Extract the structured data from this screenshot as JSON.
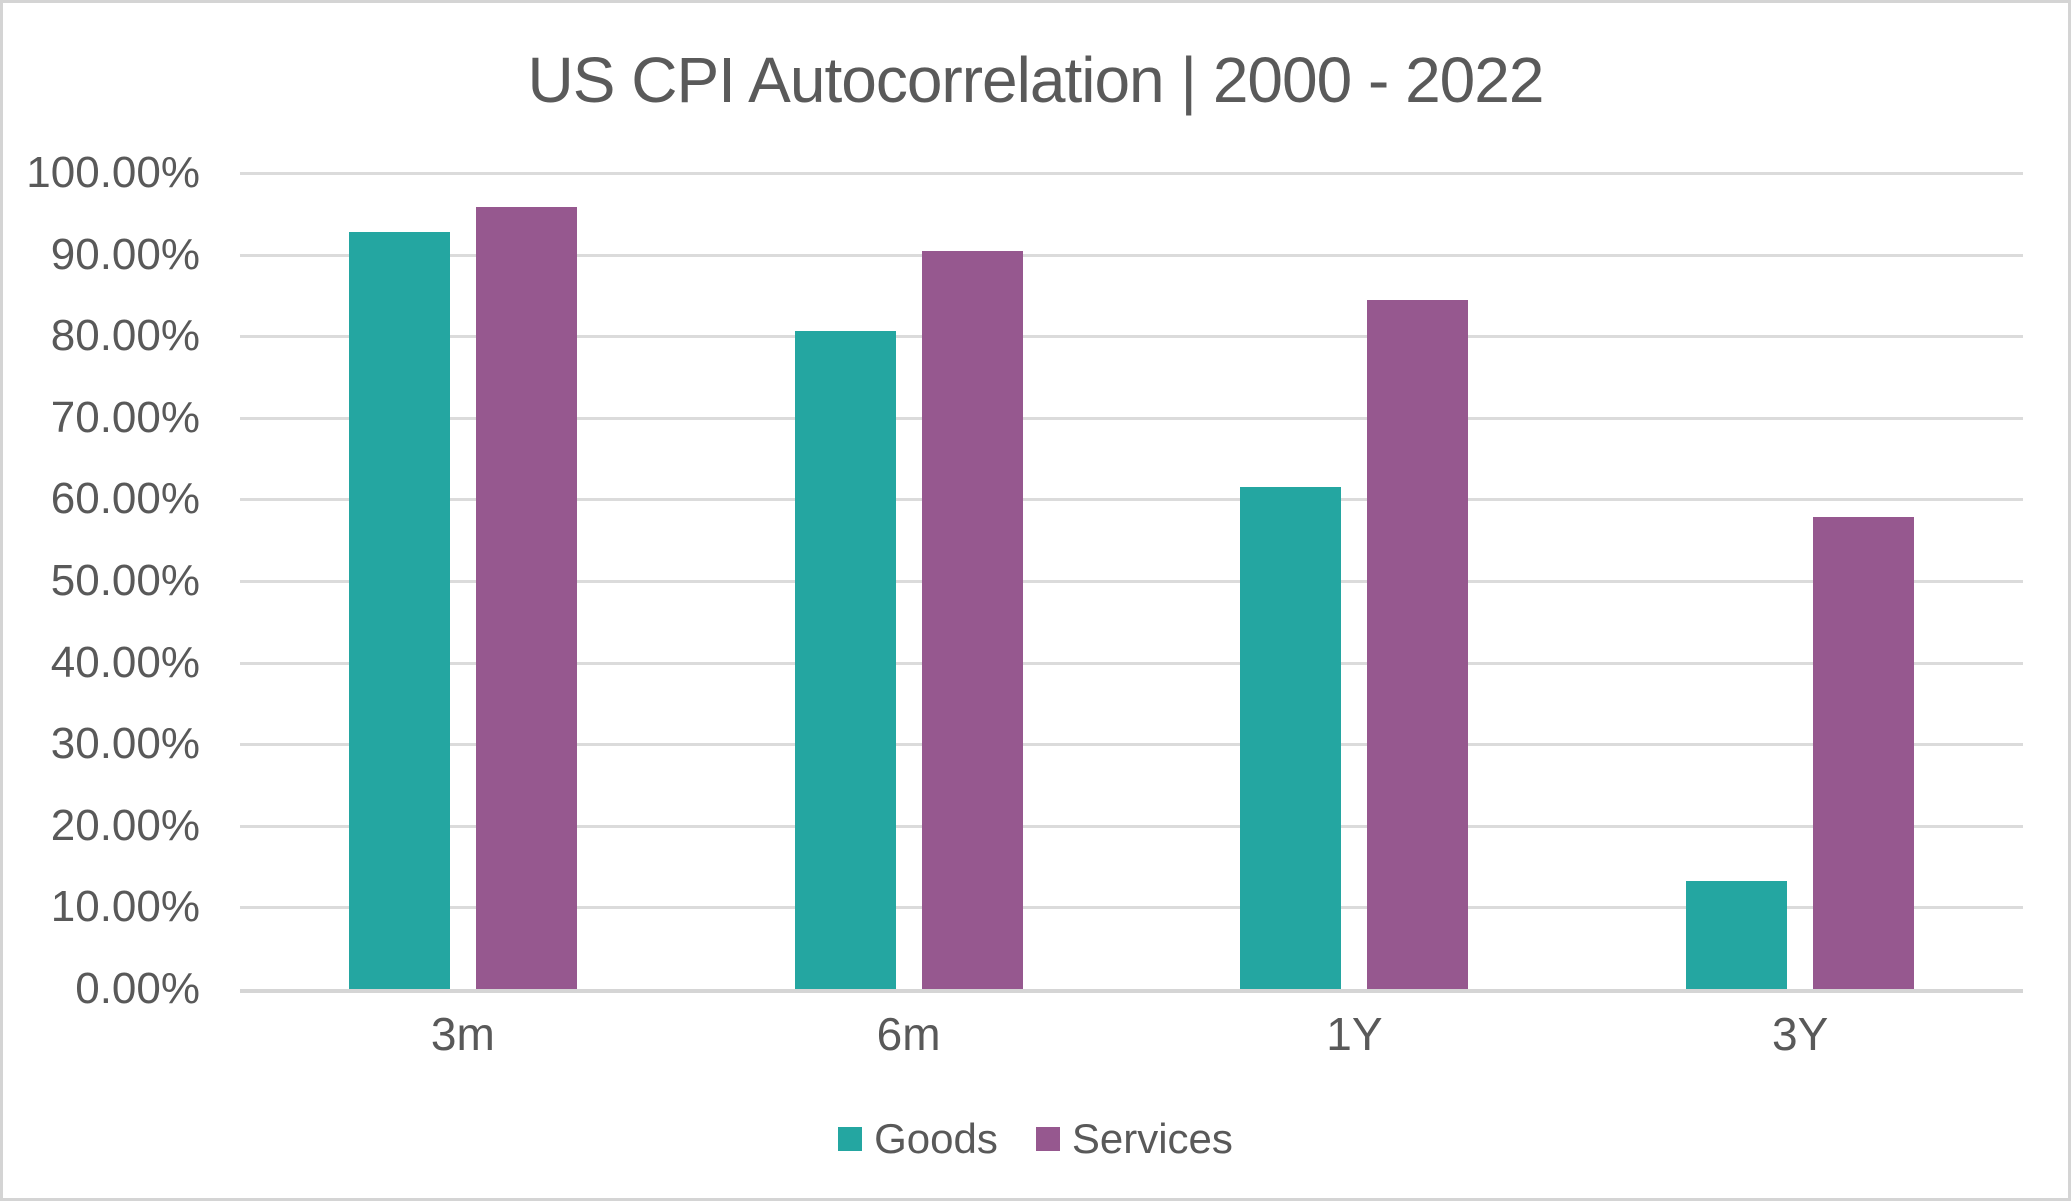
{
  "window": {
    "background_color": "#ffffff",
    "border_color": "#d4d4d4"
  },
  "chart_data": {
    "type": "bar",
    "title": "US CPI Autocorrelation | 2000 - 2022",
    "categories": [
      "3m",
      "6m",
      "1Y",
      "3Y"
    ],
    "series": [
      {
        "name": "Goods",
        "color": "#24a6a1",
        "values": [
          92.8,
          80.7,
          61.5,
          13.2
        ]
      },
      {
        "name": "Services",
        "color": "#96588f",
        "values": [
          95.8,
          90.5,
          84.4,
          57.9
        ]
      }
    ],
    "xlabel": "",
    "ylabel": "",
    "ylim": [
      0,
      100
    ],
    "y_tick_step": 10,
    "y_tick_labels": [
      "100.00%",
      "90.00%",
      "80.00%",
      "70.00%",
      "60.00%",
      "50.00%",
      "40.00%",
      "30.00%",
      "20.00%",
      "10.00%",
      "0.00%"
    ],
    "grid": true,
    "legend_position": "bottom",
    "legend_entries": [
      "Goods",
      "Services"
    ],
    "colors": {
      "text": "#595959",
      "title_text": "#5a5a5a",
      "gridline": "#dbdbdb",
      "axis_line": "#d5d5d5"
    }
  }
}
